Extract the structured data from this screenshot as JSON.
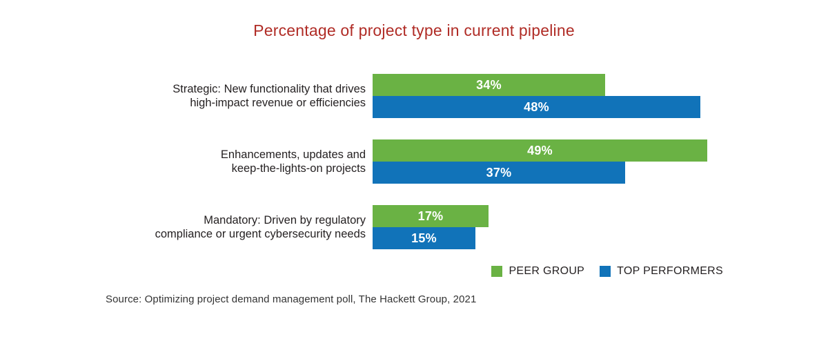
{
  "chart_data": {
    "type": "bar",
    "orientation": "horizontal",
    "title": "Percentage of project type in current pipeline",
    "categories": [
      "Strategic: New functionality that drives high-impact revenue or efficiencies",
      "Enhancements, updates and keep-the-lights-on projects",
      "Mandatory: Driven by regulatory compliance or urgent cybersecurity needs"
    ],
    "category_lines": [
      [
        "Strategic: New functionality that drives",
        "high-impact revenue or efficiencies"
      ],
      [
        "Enhancements, updates and",
        "keep-the-lights-on projects"
      ],
      [
        "Mandatory: Driven by regulatory",
        "compliance or urgent cybersecurity needs"
      ]
    ],
    "series": [
      {
        "name": "PEER GROUP",
        "color": "#6ab244",
        "values": [
          34,
          49,
          17
        ]
      },
      {
        "name": "TOP PERFORMERS",
        "color": "#1173b9",
        "values": [
          48,
          37,
          15
        ]
      }
    ],
    "value_suffix": "%",
    "xlim": [
      0,
      100
    ],
    "grid": false,
    "legend_position": "bottom-right"
  },
  "source": "Source: Optimizing project demand management poll, The Hackett Group, 2021",
  "colors": {
    "title_text": "#b02c26",
    "peer_group": "#6ab244",
    "top_performers": "#1173b9",
    "label_text": "#231f20",
    "value_text": "#ffffff",
    "background": "#ffffff"
  }
}
